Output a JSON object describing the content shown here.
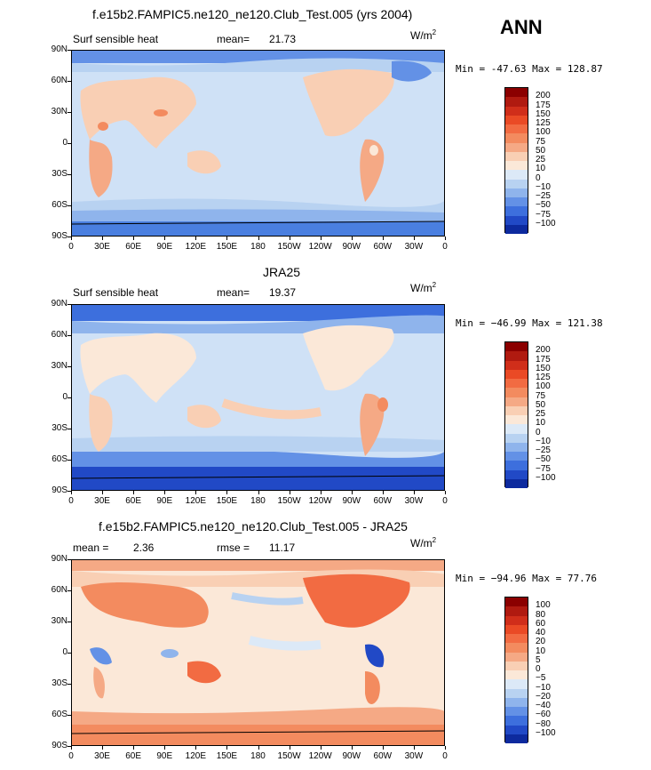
{
  "header": {
    "ann_label": "ANN"
  },
  "xticks": [
    "0",
    "30E",
    "60E",
    "90E",
    "120E",
    "150E",
    "180",
    "150W",
    "120W",
    "90W",
    "60W",
    "30W",
    "0"
  ],
  "yticks": [
    "90N",
    "60N",
    "30N",
    "0",
    "30S",
    "60S",
    "90S"
  ],
  "panels": [
    {
      "id": "model",
      "title": "f.e15b2.FAMPIC5.ne120_ne120.Club_Test.005 (yrs 2004)",
      "left_label": "Surf sensible heat",
      "stat_label": "mean=",
      "stat_value": "21.73",
      "units_base": "W/m",
      "units_exp": "2",
      "minmax": "Min = -47.63 Max = 128.87",
      "colorbar": {
        "labels": [
          "200",
          "175",
          "150",
          "125",
          "100",
          "75",
          "50",
          "25",
          "10",
          "0",
          "−10",
          "−25",
          "−50",
          "−75",
          "−100"
        ],
        "colors": [
          "#8b0000",
          "#b01a10",
          "#d02e1a",
          "#ea4a25",
          "#f26b42",
          "#f38b5f",
          "#f5a985",
          "#f9cfb4",
          "#fbe8d8",
          "#dce9f7",
          "#b8d2f1",
          "#8fb4ec",
          "#6391e6",
          "#3d6fdd",
          "#2149c6",
          "#0d2a9e"
        ]
      }
    },
    {
      "id": "obs",
      "title": "JRA25",
      "left_label": "Surf sensible heat",
      "stat_label": "mean=",
      "stat_value": "19.37",
      "units_base": "W/m",
      "units_exp": "2",
      "minmax": "Min = −46.99 Max = 121.38",
      "colorbar": {
        "labels": [
          "200",
          "175",
          "150",
          "125",
          "100",
          "75",
          "50",
          "25",
          "10",
          "0",
          "−10",
          "−25",
          "−50",
          "−75",
          "−100"
        ],
        "colors": [
          "#8b0000",
          "#b01a10",
          "#d02e1a",
          "#ea4a25",
          "#f26b42",
          "#f38b5f",
          "#f5a985",
          "#f9cfb4",
          "#fbe8d8",
          "#dce9f7",
          "#b8d2f1",
          "#8fb4ec",
          "#6391e6",
          "#3d6fdd",
          "#2149c6",
          "#0d2a9e"
        ]
      }
    },
    {
      "id": "diff",
      "title": "f.e15b2.FAMPIC5.ne120_ne120.Club_Test.005 - JRA25",
      "left_label": "mean =",
      "left_value": "2.36",
      "stat_label": "rmse =",
      "stat_value": "11.17",
      "units_base": "W/m",
      "units_exp": "2",
      "minmax": "Min = −94.96 Max =  77.76",
      "colorbar": {
        "labels": [
          "100",
          "80",
          "60",
          "40",
          "20",
          "10",
          "5",
          "0",
          "−5",
          "−10",
          "−20",
          "−40",
          "−60",
          "−80",
          "−100"
        ],
        "colors": [
          "#8b0000",
          "#b01a10",
          "#d02e1a",
          "#ea4a25",
          "#f26b42",
          "#f38b5f",
          "#f5a985",
          "#f9cfb4",
          "#fbe8d8",
          "#dce9f7",
          "#b8d2f1",
          "#8fb4ec",
          "#6391e6",
          "#3d6fdd",
          "#2149c6",
          "#0d2a9e"
        ]
      }
    }
  ]
}
